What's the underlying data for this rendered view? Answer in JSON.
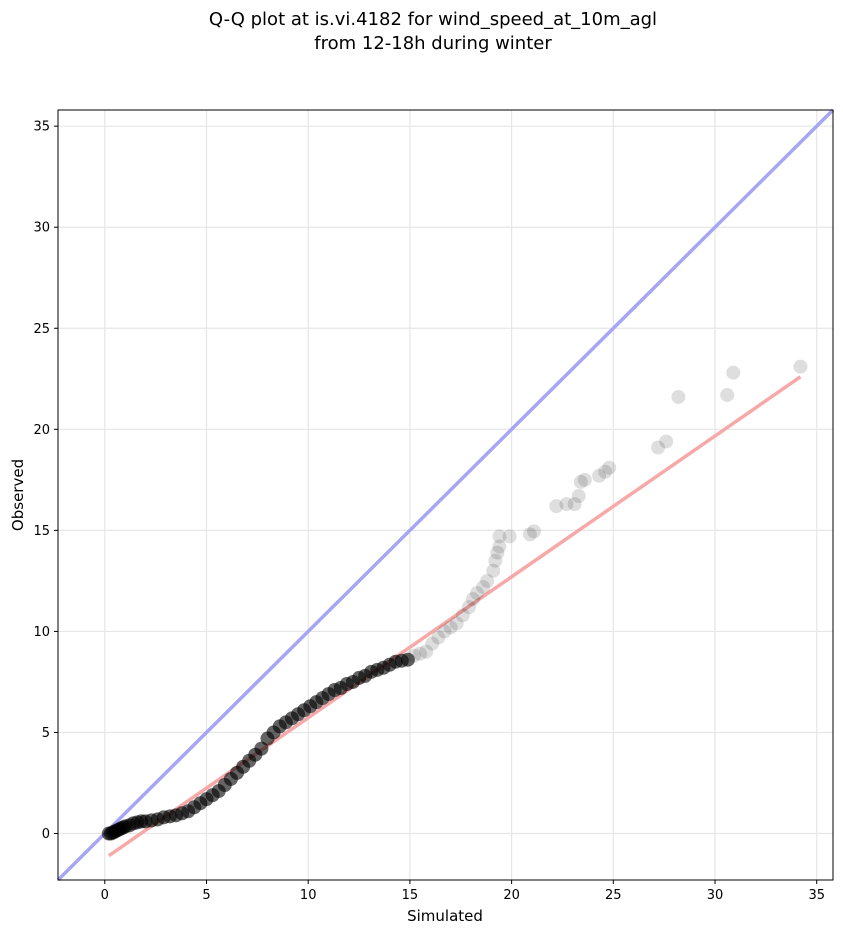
{
  "chart_data": {
    "type": "scatter",
    "title_line1": "Q-Q plot at is.vi.4182 for wind_speed_at_10m_agl",
    "title_line2": "from 12-18h during winter",
    "xlabel": "Simulated",
    "ylabel": "Observed",
    "xlim": [
      -2.3,
      35.8
    ],
    "ylim": [
      -2.3,
      35.8
    ],
    "xticks": [
      0,
      5,
      10,
      15,
      20,
      25,
      30,
      35
    ],
    "yticks": [
      0,
      5,
      10,
      15,
      20,
      25,
      30,
      35
    ],
    "grid": true,
    "identity_line": {
      "color": "#a6a6f4",
      "from": [
        -2.3,
        -2.3
      ],
      "to": [
        35.8,
        35.8
      ]
    },
    "fit_line": {
      "color": "#f7a8a8",
      "from": [
        0.2,
        -1.1
      ],
      "to": [
        34.2,
        22.6
      ]
    },
    "point_color": "#000000",
    "points": [
      [
        0.2,
        0.0
      ],
      [
        0.3,
        0.0
      ],
      [
        0.4,
        0.05
      ],
      [
        0.5,
        0.1
      ],
      [
        0.6,
        0.15
      ],
      [
        0.7,
        0.2
      ],
      [
        0.8,
        0.25
      ],
      [
        0.9,
        0.3
      ],
      [
        1.0,
        0.35
      ],
      [
        1.2,
        0.4
      ],
      [
        1.4,
        0.5
      ],
      [
        1.6,
        0.55
      ],
      [
        1.8,
        0.6
      ],
      [
        2.0,
        0.6
      ],
      [
        2.3,
        0.65
      ],
      [
        2.6,
        0.7
      ],
      [
        2.9,
        0.8
      ],
      [
        3.2,
        0.85
      ],
      [
        3.5,
        0.9
      ],
      [
        3.8,
        1.0
      ],
      [
        4.1,
        1.1
      ],
      [
        4.4,
        1.3
      ],
      [
        4.7,
        1.5
      ],
      [
        5.0,
        1.7
      ],
      [
        5.3,
        1.9
      ],
      [
        5.6,
        2.1
      ],
      [
        5.9,
        2.4
      ],
      [
        6.2,
        2.7
      ],
      [
        6.5,
        3.0
      ],
      [
        6.8,
        3.3
      ],
      [
        7.1,
        3.6
      ],
      [
        7.4,
        3.9
      ],
      [
        7.7,
        4.2
      ],
      [
        8.0,
        4.7
      ],
      [
        8.3,
        5.0
      ],
      [
        8.6,
        5.3
      ],
      [
        8.9,
        5.5
      ],
      [
        9.2,
        5.7
      ],
      [
        9.5,
        5.9
      ],
      [
        9.8,
        6.1
      ],
      [
        10.1,
        6.3
      ],
      [
        10.4,
        6.5
      ],
      [
        10.7,
        6.7
      ],
      [
        11.0,
        6.9
      ],
      [
        11.3,
        7.1
      ],
      [
        11.6,
        7.2
      ],
      [
        11.9,
        7.4
      ],
      [
        12.2,
        7.5
      ],
      [
        12.5,
        7.7
      ],
      [
        12.8,
        7.8
      ],
      [
        13.1,
        8.0
      ],
      [
        13.4,
        8.1
      ],
      [
        13.7,
        8.2
      ],
      [
        14.0,
        8.35
      ],
      [
        14.3,
        8.5
      ],
      [
        14.6,
        8.55
      ],
      [
        14.9,
        8.6
      ],
      [
        15.2,
        8.8
      ],
      [
        15.5,
        8.9
      ],
      [
        15.8,
        9.0
      ],
      [
        16.1,
        9.4
      ],
      [
        16.4,
        9.7
      ],
      [
        16.7,
        10.0
      ],
      [
        17.0,
        10.2
      ],
      [
        17.3,
        10.4
      ],
      [
        17.6,
        10.8
      ],
      [
        17.9,
        11.2
      ],
      [
        18.1,
        11.6
      ],
      [
        18.3,
        11.9
      ],
      [
        18.6,
        12.2
      ],
      [
        18.8,
        12.5
      ],
      [
        19.1,
        13.0
      ],
      [
        19.2,
        13.5
      ],
      [
        19.3,
        13.9
      ],
      [
        19.4,
        14.2
      ],
      [
        19.4,
        14.7
      ],
      [
        19.9,
        14.7
      ],
      [
        20.9,
        14.8
      ],
      [
        21.1,
        14.95
      ],
      [
        22.2,
        16.2
      ],
      [
        22.7,
        16.3
      ],
      [
        23.1,
        16.3
      ],
      [
        23.3,
        16.7
      ],
      [
        23.4,
        17.4
      ],
      [
        23.6,
        17.5
      ],
      [
        24.3,
        17.7
      ],
      [
        24.6,
        17.9
      ],
      [
        24.8,
        18.1
      ],
      [
        27.2,
        19.1
      ],
      [
        27.6,
        19.4
      ],
      [
        28.2,
        21.6
      ],
      [
        30.6,
        21.7
      ],
      [
        30.9,
        22.8
      ],
      [
        34.2,
        23.1
      ]
    ]
  }
}
